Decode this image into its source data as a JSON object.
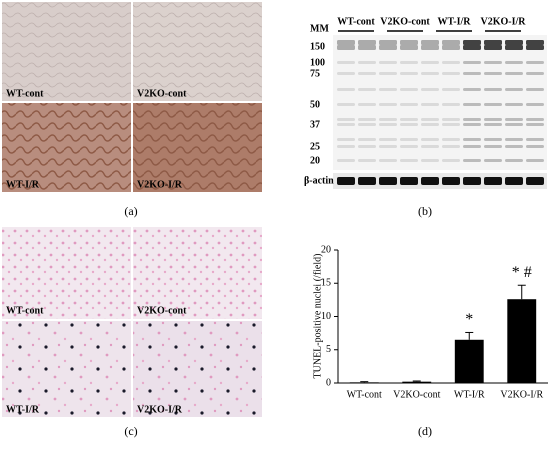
{
  "panel_a": {
    "label": "(a)",
    "images": [
      "WT-cont",
      "V2KO-cont",
      "WT-I/R",
      "V2KO-I/R"
    ]
  },
  "panel_b": {
    "label": "(b)",
    "marker_title": "MM",
    "markers": [
      150,
      100,
      75,
      50,
      37,
      25,
      20
    ],
    "groups": [
      "WT-cont",
      "V2KO-cont",
      "WT-I/R",
      "V2KO-I/R"
    ],
    "loading_control": "β-actin"
  },
  "panel_c": {
    "label": "(c)",
    "images": [
      "WT-cont",
      "V2KO-cont",
      "WT-I/R",
      "V2KO-I/R"
    ]
  },
  "chart_data": {
    "type": "bar",
    "panel_label": "(d)",
    "ylabel": "TUNEL-positive nuclei (/field)",
    "categories": [
      "WT-cont",
      "V2KO-cont",
      "WT-I/R",
      "V2KO-I/R"
    ],
    "values": [
      0.1,
      0.2,
      6.5,
      12.6
    ],
    "errors": [
      0.1,
      0.1,
      1.1,
      2.1
    ],
    "color": "#000000",
    "ylim": [
      0,
      20
    ],
    "yticks": [
      0,
      5,
      10,
      15,
      20
    ],
    "annotations": [
      {
        "x": "WT-I/R",
        "text": "*"
      },
      {
        "x": "V2KO-I/R",
        "text": "* #"
      }
    ]
  }
}
